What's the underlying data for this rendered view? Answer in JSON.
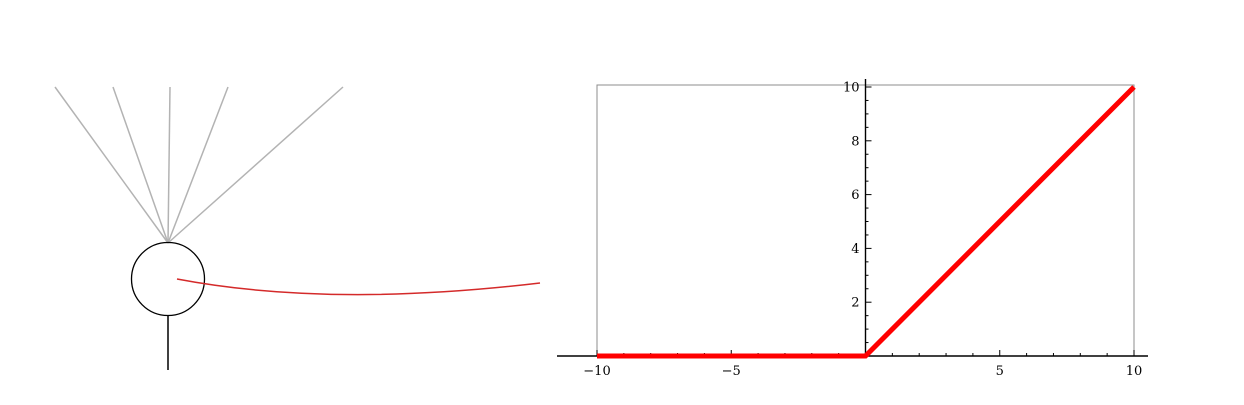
{
  "neuron": {
    "input_count": 5,
    "input_color": "#b3b3b3",
    "body_color": "#000000",
    "connector_color": "#d42a2a"
  },
  "chart_data": {
    "type": "line",
    "title": "",
    "xlabel": "",
    "ylabel": "",
    "xlim": [
      -10,
      10
    ],
    "ylim": [
      0,
      10
    ],
    "x_ticks": [
      -10,
      -5,
      5,
      10
    ],
    "x_tick_labels": [
      "−10",
      "−5",
      "5",
      "10"
    ],
    "y_ticks": [
      2,
      4,
      6,
      8,
      10
    ],
    "y_tick_labels": [
      "2",
      "4",
      "6",
      "8",
      "10"
    ],
    "series": [
      {
        "x": [
          -10,
          0,
          10
        ],
        "y": [
          0,
          0,
          10
        ],
        "color": "#ff0000"
      }
    ],
    "grid": false,
    "frame": true
  }
}
